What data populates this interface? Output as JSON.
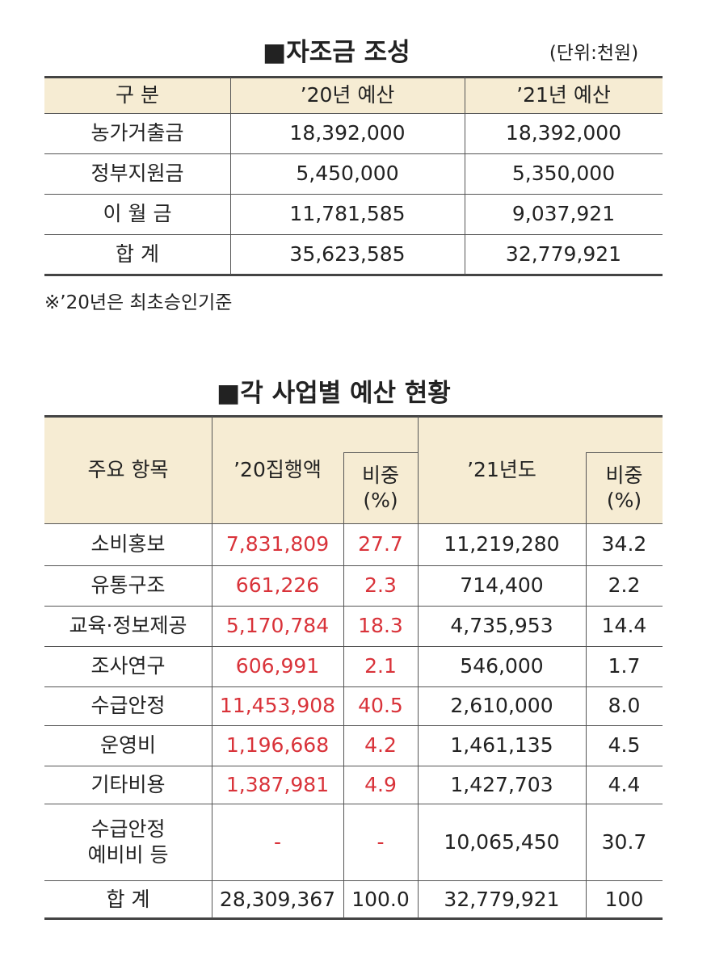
{
  "table1": {
    "title": "■자조금 조성",
    "unit": "(단위:천원)",
    "headers": [
      "구    분",
      "’20년 예산",
      "’21년 예산"
    ],
    "rows": [
      [
        "농가거출금",
        "18,392,000",
        "18,392,000"
      ],
      [
        "정부지원금",
        "5,450,000",
        "5,350,000"
      ],
      [
        "이 월 금",
        "11,781,585",
        "9,037,921"
      ],
      [
        "합    계",
        "35,623,585",
        "32,779,921"
      ]
    ],
    "note": "※’20년은 최초승인기준"
  },
  "table2": {
    "title": "■각 사업별 예산 현황",
    "headers": [
      "주요 항목",
      "’20집행액",
      "비중\n(%)",
      "’21년도",
      "비중\n(%)"
    ],
    "rows": [
      [
        "소비홍보",
        "7,831,809",
        "27.7",
        "11,219,280",
        "34.2"
      ],
      [
        "유통구조",
        "661,226",
        "2.3",
        "714,400",
        "2.2"
      ],
      [
        "교육·정보제공",
        "5,170,784",
        "18.3",
        "4,735,953",
        "14.4"
      ],
      [
        "조사연구",
        "606,991",
        "2.1",
        "546,000",
        "1.7"
      ],
      [
        "수급안정",
        "11,453,908",
        "40.5",
        "2,610,000",
        "8.0"
      ],
      [
        "운영비",
        "1,196,668",
        "4.2",
        "1,461,135",
        "4.5"
      ],
      [
        "기타비용",
        "1,387,981",
        "4.9",
        "1,427,703",
        "4.4"
      ],
      [
        "수급안정\n예비비 등",
        "-",
        "-",
        "10,065,450",
        "30.7"
      ],
      [
        "합 계",
        "28,309,367",
        "100.0",
        "32,779,921",
        "100"
      ]
    ]
  }
}
